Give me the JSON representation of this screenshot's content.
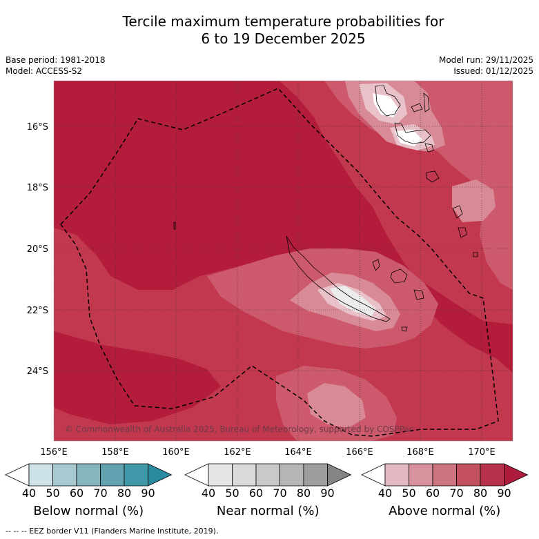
{
  "title_line1": "Tercile maximum temperature probabilities for",
  "title_line2": "6 to 19 December 2025",
  "meta": {
    "base_period": "Base period: 1981-2018",
    "model": "Model: ACCESS-S2",
    "model_run": "Model run: 29/11/2025",
    "issued": "Issued: 01/12/2025"
  },
  "map": {
    "lat_labels": [
      "16°S",
      "18°S",
      "20°S",
      "22°S",
      "24°S"
    ],
    "lat_values": [
      -16,
      -18,
      -20,
      -22,
      -24
    ],
    "lon_labels": [
      "156°E",
      "158°E",
      "160°E",
      "162°E",
      "164°E",
      "166°E",
      "168°E",
      "170°E"
    ],
    "lon_values": [
      156,
      158,
      160,
      162,
      164,
      166,
      168,
      170
    ],
    "copyright": "© Commonwealth of Australia 2025, Bureau of Meteorology, supported by COSPPac"
  },
  "colorbars": [
    {
      "title": "Below normal (%)",
      "ticks": [
        "40",
        "50",
        "60",
        "70",
        "80",
        "90"
      ],
      "colors": [
        "#ffffff",
        "#cde3e8",
        "#a8c9d0",
        "#86b5c0",
        "#62a2b0",
        "#3f97a8",
        "#2a8aa0"
      ]
    },
    {
      "title": "Near normal (%)",
      "ticks": [
        "40",
        "50",
        "60",
        "70",
        "80",
        "90"
      ],
      "colors": [
        "#ffffff",
        "#e6e6e6",
        "#d9d9d9",
        "#c9c9c9",
        "#b5b5b5",
        "#9e9e9e",
        "#858585"
      ]
    },
    {
      "title": "Above normal (%)",
      "ticks": [
        "40",
        "50",
        "60",
        "70",
        "80",
        "90"
      ],
      "colors": [
        "#ffffff",
        "#e3b8c0",
        "#d8929e",
        "#cc7480",
        "#c2505f",
        "#b7334b",
        "#ad1c3a"
      ]
    }
  ],
  "footnote": "--  --  -- EEZ border V11 (Flanders Marine Institute, 2019)."
}
